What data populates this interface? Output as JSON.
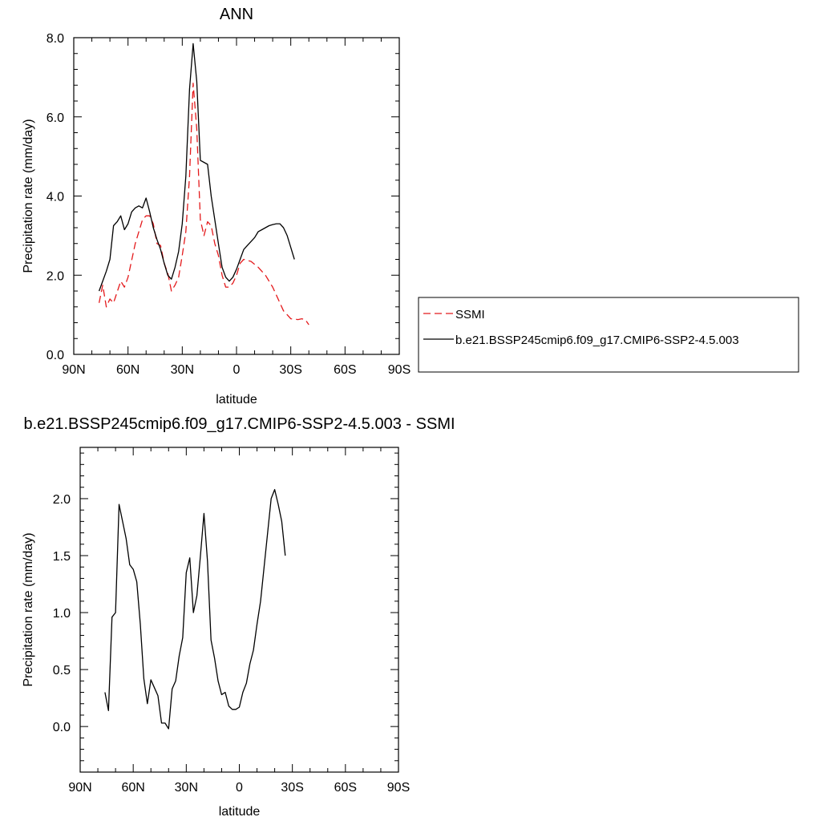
{
  "chart_data": [
    {
      "type": "line",
      "title": "ANN",
      "xlabel": "latitude",
      "ylabel": "Precipitation rate (mm/day)",
      "xlim": [
        90,
        -90
      ],
      "ylim": [
        0,
        8
      ],
      "xticks": [
        {
          "value": 90,
          "label": "90N"
        },
        {
          "value": 60,
          "label": "60N"
        },
        {
          "value": 30,
          "label": "30N"
        },
        {
          "value": 0,
          "label": "0"
        },
        {
          "value": -30,
          "label": "30S"
        },
        {
          "value": -60,
          "label": "60S"
        },
        {
          "value": -90,
          "label": "90S"
        }
      ],
      "yticks": [
        {
          "value": 0,
          "label": "0.0"
        },
        {
          "value": 2,
          "label": "2.0"
        },
        {
          "value": 4,
          "label": "4.0"
        },
        {
          "value": 6,
          "label": "6.0"
        },
        {
          "value": 8,
          "label": "8.0"
        }
      ],
      "legend_position": "right",
      "series": [
        {
          "name": "SSMI",
          "color": "#e41a1c",
          "dash": "dashed",
          "points": [
            [
              76,
              1.3
            ],
            [
              74,
              1.75
            ],
            [
              72,
              1.2
            ],
            [
              70,
              1.4
            ],
            [
              68,
              1.3
            ],
            [
              64,
              1.85
            ],
            [
              62,
              1.7
            ],
            [
              60,
              1.95
            ],
            [
              56,
              2.8
            ],
            [
              52,
              3.4
            ],
            [
              50,
              3.5
            ],
            [
              48,
              3.5
            ],
            [
              46,
              3.3
            ],
            [
              44,
              2.8
            ],
            [
              42,
              2.75
            ],
            [
              40,
              2.3
            ],
            [
              38,
              2.05
            ],
            [
              36,
              1.6
            ],
            [
              34,
              1.75
            ],
            [
              32,
              1.95
            ],
            [
              30,
              2.5
            ],
            [
              28,
              3.1
            ],
            [
              26,
              4.5
            ],
            [
              24,
              6.85
            ],
            [
              22,
              5.7
            ],
            [
              20,
              3.4
            ],
            [
              18,
              3.0
            ],
            [
              16,
              3.35
            ],
            [
              14,
              3.25
            ],
            [
              12,
              2.8
            ],
            [
              10,
              2.5
            ],
            [
              8,
              2.0
            ],
            [
              6,
              1.7
            ],
            [
              4,
              1.7
            ],
            [
              2,
              1.8
            ],
            [
              0,
              2.0
            ],
            [
              -2,
              2.3
            ],
            [
              -4,
              2.4
            ],
            [
              -8,
              2.35
            ],
            [
              -12,
              2.2
            ],
            [
              -16,
              2.0
            ],
            [
              -20,
              1.7
            ],
            [
              -24,
              1.3
            ],
            [
              -26,
              1.1
            ],
            [
              -28,
              1.0
            ],
            [
              -30,
              0.9
            ],
            [
              -34,
              0.88
            ],
            [
              -36,
              0.9
            ],
            [
              -38,
              0.88
            ],
            [
              -40,
              0.75
            ]
          ]
        },
        {
          "name": "b.e21.BSSP245cmip6.f09_g17.CMIP6-SSP2-4.5.003",
          "color": "#000000",
          "dash": "solid",
          "points": [
            [
              76,
              1.6
            ],
            [
              72,
              2.1
            ],
            [
              70,
              2.4
            ],
            [
              68,
              3.25
            ],
            [
              66,
              3.35
            ],
            [
              64,
              3.5
            ],
            [
              62,
              3.15
            ],
            [
              60,
              3.3
            ],
            [
              58,
              3.6
            ],
            [
              56,
              3.7
            ],
            [
              54,
              3.75
            ],
            [
              52,
              3.7
            ],
            [
              50,
              3.95
            ],
            [
              48,
              3.6
            ],
            [
              46,
              3.2
            ],
            [
              44,
              2.9
            ],
            [
              42,
              2.65
            ],
            [
              40,
              2.3
            ],
            [
              38,
              2.0
            ],
            [
              36,
              1.9
            ],
            [
              34,
              2.2
            ],
            [
              32,
              2.6
            ],
            [
              30,
              3.3
            ],
            [
              28,
              4.5
            ],
            [
              26,
              6.7
            ],
            [
              24,
              7.85
            ],
            [
              22,
              6.9
            ],
            [
              20,
              4.9
            ],
            [
              18,
              4.85
            ],
            [
              16,
              4.8
            ],
            [
              14,
              4.0
            ],
            [
              12,
              3.4
            ],
            [
              10,
              2.8
            ],
            [
              8,
              2.2
            ],
            [
              6,
              1.95
            ],
            [
              4,
              1.85
            ],
            [
              2,
              1.95
            ],
            [
              0,
              2.15
            ],
            [
              -2,
              2.4
            ],
            [
              -4,
              2.65
            ],
            [
              -6,
              2.75
            ],
            [
              -8,
              2.85
            ],
            [
              -10,
              2.95
            ],
            [
              -12,
              3.1
            ],
            [
              -14,
              3.15
            ],
            [
              -16,
              3.2
            ],
            [
              -18,
              3.25
            ],
            [
              -20,
              3.28
            ],
            [
              -22,
              3.3
            ],
            [
              -24,
              3.3
            ],
            [
              -26,
              3.2
            ],
            [
              -28,
              3.0
            ],
            [
              -30,
              2.7
            ],
            [
              -32,
              2.4
            ]
          ]
        }
      ]
    },
    {
      "type": "line",
      "title": "b.e21.BSSP245cmip6.f09_g17.CMIP6-SSP2-4.5.003 - SSMI",
      "xlabel": "latitude",
      "ylabel": "Precipitation rate (mm/day)",
      "xlim": [
        90,
        -90
      ],
      "ylim": [
        -0.4,
        2.45
      ],
      "xticks": [
        {
          "value": 90,
          "label": "90N"
        },
        {
          "value": 60,
          "label": "60N"
        },
        {
          "value": 30,
          "label": "30N"
        },
        {
          "value": 0,
          "label": "0"
        },
        {
          "value": -30,
          "label": "30S"
        },
        {
          "value": -60,
          "label": "60S"
        },
        {
          "value": -90,
          "label": "90S"
        }
      ],
      "yticks": [
        {
          "value": 0,
          "label": "0.0"
        },
        {
          "value": 0.5,
          "label": "0.5"
        },
        {
          "value": 1,
          "label": "1.0"
        },
        {
          "value": 1.5,
          "label": "1.5"
        },
        {
          "value": 2,
          "label": "2.0"
        }
      ],
      "series": [
        {
          "color": "#000000",
          "dash": "solid",
          "points": [
            [
              76,
              0.3
            ],
            [
              74,
              0.14
            ],
            [
              72,
              0.96
            ],
            [
              70,
              1.0
            ],
            [
              68,
              1.95
            ],
            [
              66,
              1.8
            ],
            [
              64,
              1.65
            ],
            [
              62,
              1.42
            ],
            [
              60,
              1.38
            ],
            [
              58,
              1.27
            ],
            [
              56,
              0.9
            ],
            [
              54,
              0.42
            ],
            [
              52,
              0.2
            ],
            [
              50,
              0.41
            ],
            [
              48,
              0.34
            ],
            [
              46,
              0.27
            ],
            [
              44,
              0.03
            ],
            [
              42,
              0.03
            ],
            [
              40,
              -0.02
            ],
            [
              38,
              0.33
            ],
            [
              36,
              0.4
            ],
            [
              34,
              0.62
            ],
            [
              32,
              0.78
            ],
            [
              30,
              1.35
            ],
            [
              28,
              1.48
            ],
            [
              26,
              1.0
            ],
            [
              24,
              1.15
            ],
            [
              22,
              1.5
            ],
            [
              20,
              1.87
            ],
            [
              18,
              1.45
            ],
            [
              16,
              0.76
            ],
            [
              14,
              0.6
            ],
            [
              12,
              0.4
            ],
            [
              10,
              0.28
            ],
            [
              8,
              0.3
            ],
            [
              6,
              0.18
            ],
            [
              4,
              0.15
            ],
            [
              2,
              0.15
            ],
            [
              0,
              0.17
            ],
            [
              -2,
              0.3
            ],
            [
              -4,
              0.38
            ],
            [
              -6,
              0.55
            ],
            [
              -8,
              0.67
            ],
            [
              -10,
              0.9
            ],
            [
              -12,
              1.1
            ],
            [
              -14,
              1.4
            ],
            [
              -16,
              1.7
            ],
            [
              -18,
              2.0
            ],
            [
              -20,
              2.08
            ],
            [
              -22,
              1.95
            ],
            [
              -24,
              1.8
            ],
            [
              -26,
              1.5
            ]
          ]
        }
      ]
    }
  ]
}
